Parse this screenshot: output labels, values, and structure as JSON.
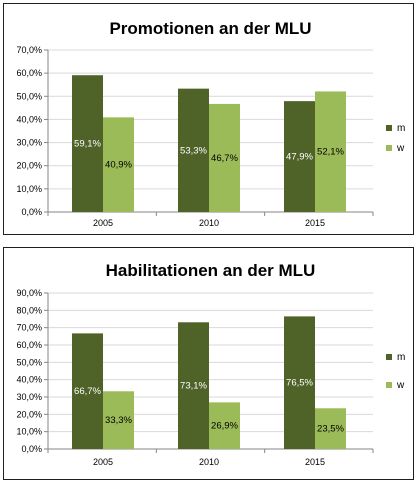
{
  "chart_data": [
    {
      "type": "bar",
      "title": "Promotionen an der MLU",
      "categories": [
        "2005",
        "2010",
        "2015"
      ],
      "series": [
        {
          "name": "m",
          "values": [
            59.1,
            53.3,
            47.9
          ],
          "labels": [
            "59,1%",
            "53,3%",
            "47,9%"
          ],
          "color": "#4f6228"
        },
        {
          "name": "w",
          "values": [
            40.9,
            46.7,
            52.1
          ],
          "labels": [
            "40,9%",
            "46,7%",
            "52,1%"
          ],
          "color": "#9bbb59"
        }
      ],
      "ylim": [
        0,
        70
      ],
      "yticks": [
        "0,0%",
        "10,0%",
        "20,0%",
        "30,0%",
        "40,0%",
        "50,0%",
        "60,0%",
        "70,0%"
      ],
      "grid": true,
      "legend": "right"
    },
    {
      "type": "bar",
      "title": "Habilitationen an der MLU",
      "categories": [
        "2005",
        "2010",
        "2015"
      ],
      "series": [
        {
          "name": "m",
          "values": [
            66.7,
            73.1,
            76.5
          ],
          "labels": [
            "66,7%",
            "73,1%",
            "76,5%"
          ],
          "color": "#4f6228"
        },
        {
          "name": "w",
          "values": [
            33.3,
            26.9,
            23.5
          ],
          "labels": [
            "33,3%",
            "26,9%",
            "23,5%"
          ],
          "color": "#9bbb59"
        }
      ],
      "ylim": [
        0,
        90
      ],
      "yticks": [
        "0,0%",
        "10,0%",
        "20,0%",
        "30,0%",
        "40,0%",
        "50,0%",
        "60,0%",
        "70,0%",
        "80,0%",
        "90,0%"
      ],
      "grid": true,
      "legend": "right"
    }
  ],
  "colors": {
    "m": "#4f6228",
    "w": "#9bbb59",
    "grid": "#d9d9d9",
    "axis": "#868686"
  }
}
